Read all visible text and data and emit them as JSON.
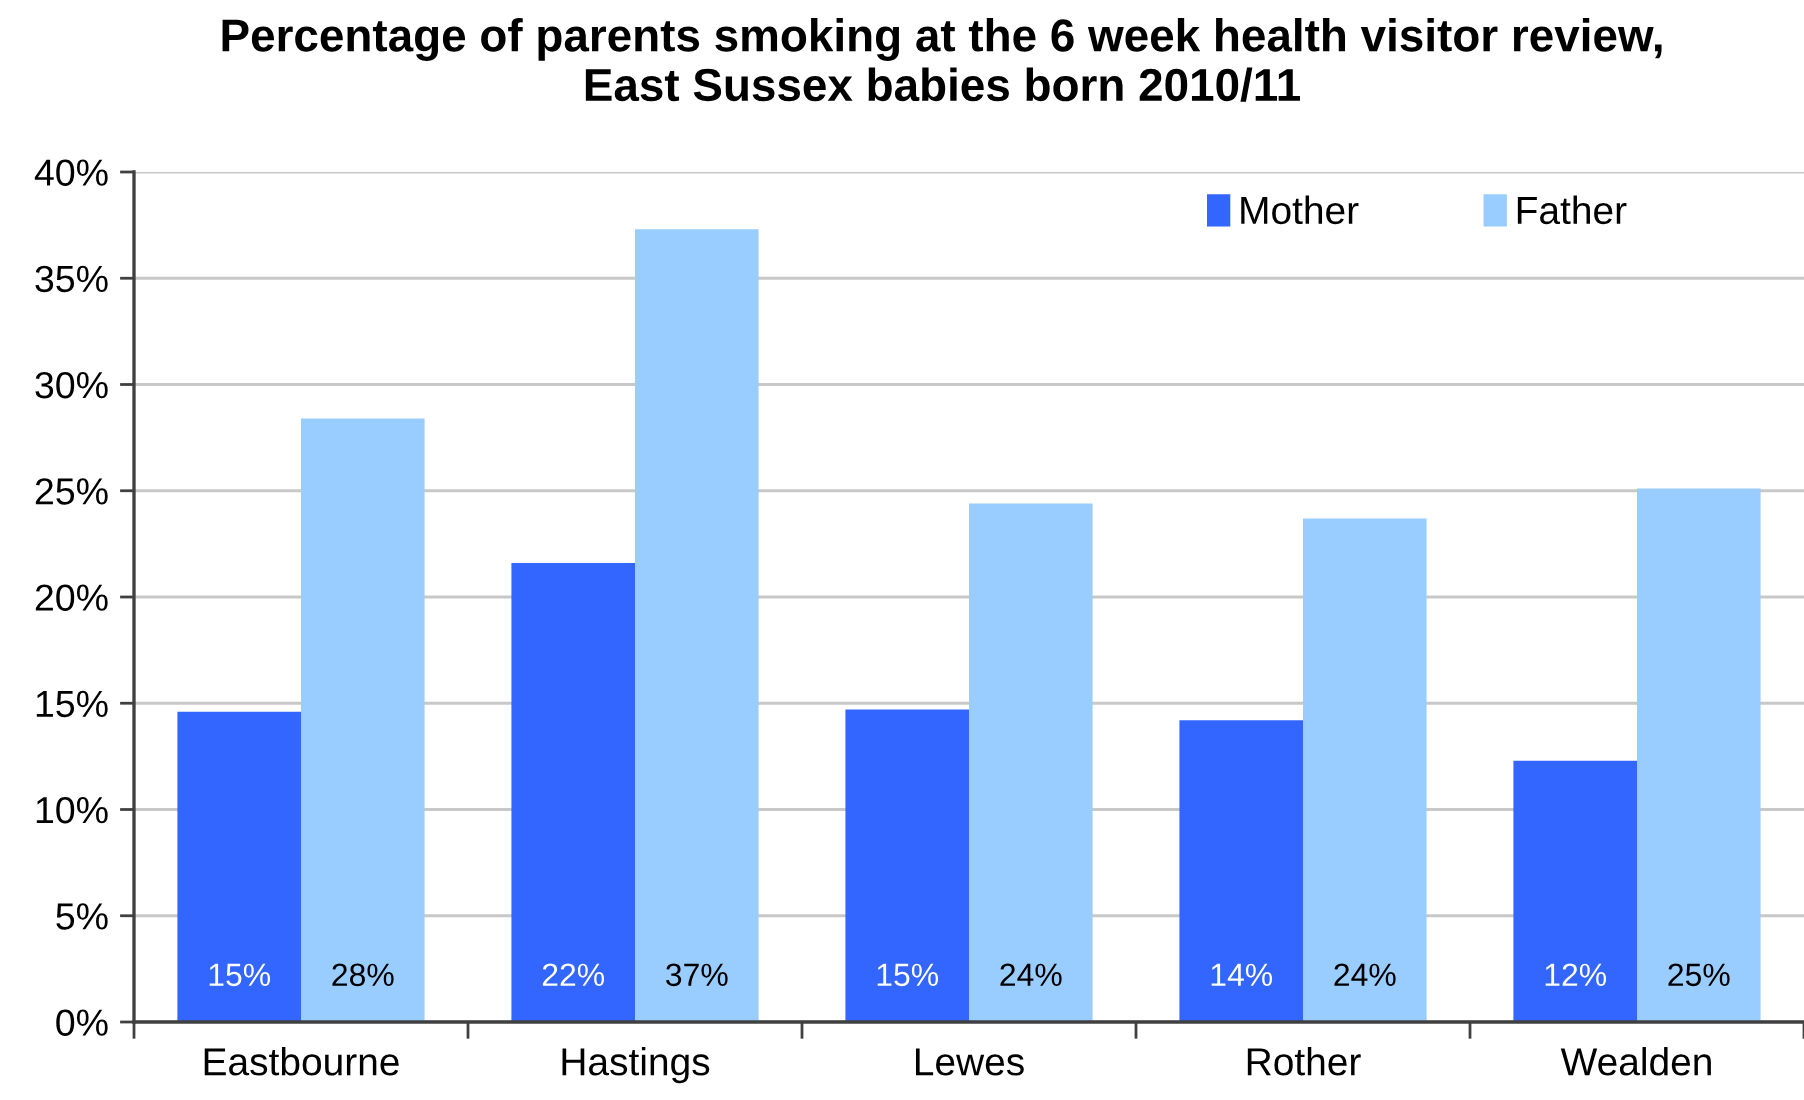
{
  "chart_data": {
    "type": "bar",
    "title": "Percentage of parents smoking at the 6 week health visitor review,\nEast Sussex babies born 2010/11",
    "categories": [
      "Eastbourne",
      "Hastings",
      "Lewes",
      "Rother",
      "Wealden"
    ],
    "series": [
      {
        "name": "Mother",
        "color": "#3366ff",
        "values": [
          14.6,
          21.6,
          14.7,
          14.2,
          12.3
        ],
        "value_labels": [
          "15%",
          "22%",
          "15%",
          "14%",
          "12%"
        ]
      },
      {
        "name": "Father",
        "color": "#99ccff",
        "values": [
          28.4,
          37.3,
          24.4,
          23.7,
          25.1
        ],
        "value_labels": [
          "28%",
          "37%",
          "24%",
          "24%",
          "25%"
        ]
      }
    ],
    "ylim": [
      0,
      40
    ],
    "yticks": [
      {
        "value": 0,
        "label": "0%"
      },
      {
        "value": 5,
        "label": "5%"
      },
      {
        "value": 10,
        "label": "10%"
      },
      {
        "value": 15,
        "label": "15%"
      },
      {
        "value": 20,
        "label": "20%"
      },
      {
        "value": 25,
        "label": "25%"
      },
      {
        "value": 30,
        "label": "30%"
      },
      {
        "value": 35,
        "label": "35%"
      },
      {
        "value": 40,
        "label": "40%"
      }
    ],
    "grid": "y",
    "legend": "top right"
  }
}
